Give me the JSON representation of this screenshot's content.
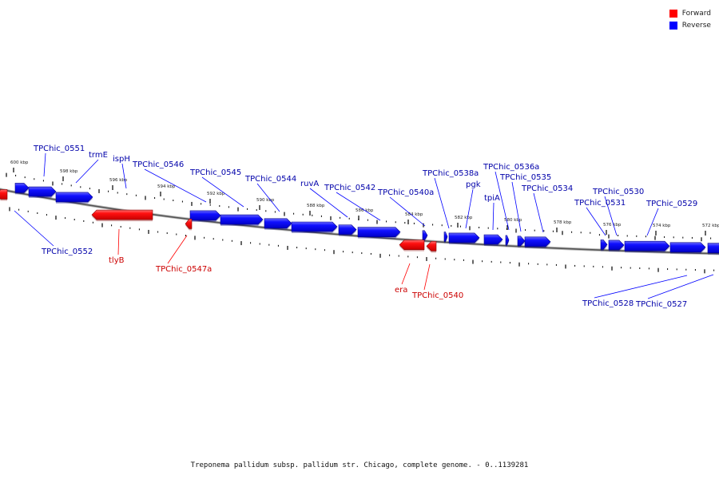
{
  "legend": [
    {
      "label": "Forward",
      "color": "#ff0000"
    },
    {
      "label": "Reverse",
      "color": "#0000ff"
    }
  ],
  "caption": "Treponema pallidum subsp. pallidum str. Chicago, complete genome. - 0..1139281",
  "colors": {
    "forward": "#ff0000",
    "reverse": "#0000ff",
    "backbone": "#777777"
  },
  "ticks": [
    "600 kbp",
    "598 kbp",
    "596 kbp",
    "594 kbp",
    "592 kbp",
    "590 kbp",
    "588 kbp",
    "586 kbp",
    "584 kbp",
    "582 kbp",
    "580 kbp",
    "578 kbp",
    "576 kbp",
    "574 kbp",
    "572 kbp"
  ],
  "genes": [
    {
      "label": "TPChic_0551",
      "strand": "reverse"
    },
    {
      "label": "trmE",
      "strand": "reverse"
    },
    {
      "label": "ispH",
      "strand": "reverse"
    },
    {
      "label": "TPChic_0546",
      "strand": "reverse"
    },
    {
      "label": "TPChic_0545",
      "strand": "reverse"
    },
    {
      "label": "TPChic_0544",
      "strand": "reverse"
    },
    {
      "label": "ruvA",
      "strand": "reverse"
    },
    {
      "label": "TPChic_0542",
      "strand": "reverse"
    },
    {
      "label": "TPChic_0540a",
      "strand": "reverse"
    },
    {
      "label": "TPChic_0538a",
      "strand": "reverse"
    },
    {
      "label": "pgk",
      "strand": "reverse"
    },
    {
      "label": "tpiA",
      "strand": "reverse"
    },
    {
      "label": "TPChic_0536a",
      "strand": "reverse"
    },
    {
      "label": "TPChic_0535",
      "strand": "reverse"
    },
    {
      "label": "TPChic_0534",
      "strand": "reverse"
    },
    {
      "label": "TPChic_0531",
      "strand": "reverse"
    },
    {
      "label": "TPChic_0530",
      "strand": "reverse"
    },
    {
      "label": "TPChic_0529",
      "strand": "reverse"
    },
    {
      "label": "TPChic_0552",
      "strand": "reverse"
    },
    {
      "label": "TPChic_0528",
      "strand": "reverse"
    },
    {
      "label": "TPChic_0527",
      "strand": "reverse"
    },
    {
      "label": "tlyB",
      "strand": "forward"
    },
    {
      "label": "TPChic_0547a",
      "strand": "forward"
    },
    {
      "label": "era",
      "strand": "forward"
    },
    {
      "label": "TPChic_0540",
      "strand": "forward"
    }
  ]
}
